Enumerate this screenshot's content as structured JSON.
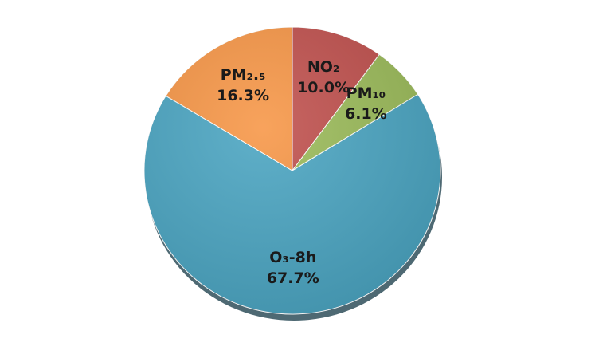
{
  "chart_data": {
    "type": "pie",
    "categories": [
      "NO₂",
      "PM₁₀",
      "O₃-8h",
      "PM₂.₅"
    ],
    "values": [
      10.0,
      6.1,
      67.7,
      16.3
    ],
    "value_labels": [
      "10.0%",
      "6.1%",
      "67.7%",
      "16.3%"
    ],
    "colors": [
      "#c0504d",
      "#9bbb59",
      "#4aa5c2",
      "#f79646"
    ]
  }
}
